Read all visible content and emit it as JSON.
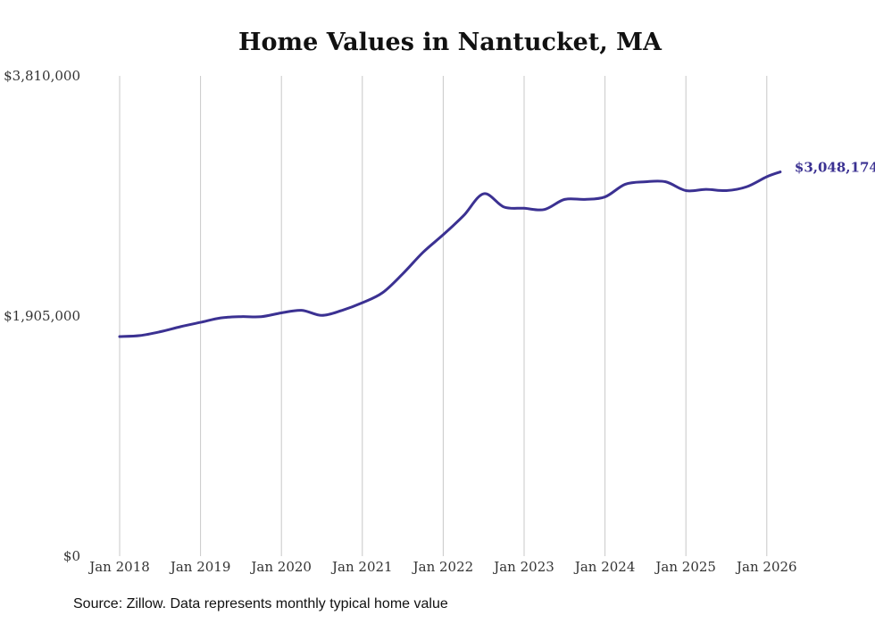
{
  "chart_data": {
    "type": "line",
    "title": "Home Values in Nantucket, MA",
    "source": "Source: Zillow. Data represents monthly typical home value",
    "xlabel": "",
    "ylabel": "",
    "ylim": [
      0,
      3810000
    ],
    "y_ticks": [
      0,
      1905000,
      3810000
    ],
    "y_tick_labels": [
      "$0",
      "$1,905,000",
      "$3,810,000"
    ],
    "x_tick_labels": [
      "Jan 2018",
      "Jan 2019",
      "Jan 2020",
      "Jan 2021",
      "Jan 2022",
      "Jan 2023",
      "Jan 2024",
      "Jan 2025",
      "Jan 2026"
    ],
    "grid": "vertical",
    "line_color": "#3b3192",
    "end_label": "$3,048,174",
    "series": [
      {
        "name": "Typical home value",
        "x": [
          "2018-01",
          "2018-04",
          "2018-07",
          "2018-10",
          "2019-01",
          "2019-04",
          "2019-07",
          "2019-10",
          "2020-01",
          "2020-04",
          "2020-07",
          "2020-10",
          "2021-01",
          "2021-04",
          "2021-07",
          "2021-10",
          "2022-01",
          "2022-04",
          "2022-07",
          "2022-10",
          "2023-01",
          "2023-04",
          "2023-07",
          "2023-10",
          "2024-01",
          "2024-04",
          "2024-07",
          "2024-10",
          "2025-01",
          "2025-04",
          "2025-07",
          "2025-10",
          "2026-01",
          "2026-03"
        ],
        "values": [
          1742000,
          1750000,
          1780000,
          1820000,
          1855000,
          1890000,
          1900000,
          1900000,
          1930000,
          1950000,
          1910000,
          1950000,
          2010000,
          2090000,
          2240000,
          2410000,
          2550000,
          2700000,
          2875000,
          2770000,
          2760000,
          2750000,
          2830000,
          2830000,
          2850000,
          2950000,
          2970000,
          2970000,
          2900000,
          2910000,
          2900000,
          2930000,
          3010000,
          3048174
        ]
      }
    ]
  }
}
